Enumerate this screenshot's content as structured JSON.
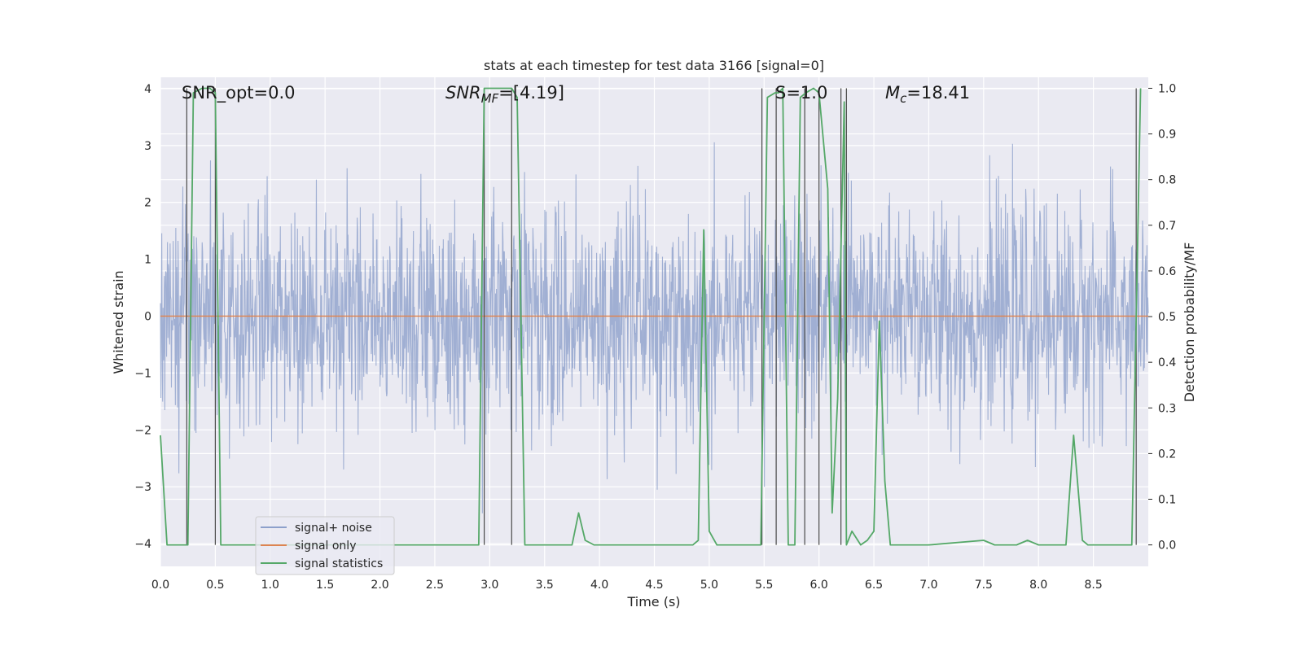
{
  "chart_data": {
    "type": "line",
    "title": "stats at each timestep for test data 3166 [signal=0]",
    "xlabel": "Time (s)",
    "ylabel": "Whitened strain",
    "y2label": "Detection probability/MF",
    "xlim": [
      0.0,
      9.0
    ],
    "ylim": [
      -4.4,
      4.2
    ],
    "y2lim": [
      -0.047,
      1.024
    ],
    "xticks": [
      0.0,
      0.5,
      1.0,
      1.5,
      2.0,
      2.5,
      3.0,
      3.5,
      4.0,
      4.5,
      5.0,
      5.5,
      6.0,
      6.5,
      7.0,
      7.5,
      8.0,
      8.5
    ],
    "xtick_labels": [
      "0.0",
      "0.5",
      "1.0",
      "1.5",
      "2.0",
      "2.5",
      "3.0",
      "3.5",
      "4.0",
      "4.5",
      "5.0",
      "5.5",
      "6.0",
      "6.5",
      "7.0",
      "7.5",
      "8.0",
      "8.5"
    ],
    "yticks": [
      -4,
      -3,
      -2,
      -1,
      0,
      1,
      2,
      3,
      4
    ],
    "ytick_labels": [
      "−4",
      "−3",
      "−2",
      "−1",
      "0",
      "1",
      "2",
      "3",
      "4"
    ],
    "y2ticks": [
      0.0,
      0.1,
      0.2,
      0.3,
      0.4,
      0.5,
      0.6,
      0.7,
      0.8,
      0.9,
      1.0
    ],
    "y2tick_labels": [
      "0.0",
      "0.1",
      "0.2",
      "0.3",
      "0.4",
      "0.5",
      "0.6",
      "0.7",
      "0.8",
      "0.9",
      "1.0"
    ],
    "annotations": [
      {
        "id": "snr-opt",
        "text": "SNR_opt=0.0",
        "x": 0.19
      },
      {
        "id": "snr-mf",
        "sub": "MF",
        "text": "=[4.19]",
        "x": 2.6
      },
      {
        "id": "s-value",
        "text": "S=1.0",
        "x": 5.6
      },
      {
        "id": "mc-value",
        "sub": "c",
        "text": "=18.41",
        "x": 6.6
      }
    ],
    "legend": {
      "placement": "lower-left",
      "entries": [
        {
          "label": "signal+ noise",
          "color": "#8da0cb"
        },
        {
          "label": "signal only",
          "color": "#dd8452"
        },
        {
          "label": "signal statistics",
          "color": "#55a868"
        }
      ]
    },
    "series": [
      {
        "name": "signal+ noise",
        "color": "#8da0cb",
        "kind": "noise",
        "t_start": 0.0,
        "t_end": 9.0,
        "n_samples": 2250,
        "std": 0.95,
        "min": -3.6,
        "max": 3.4
      },
      {
        "name": "signal only",
        "color": "#dd8452",
        "x": [
          0.0,
          9.0
        ],
        "y": [
          0.0,
          0.0
        ]
      },
      {
        "name": "signal statistics",
        "color": "#55a868",
        "x": [
          0.0,
          0.06,
          0.25,
          0.3,
          0.38,
          0.45,
          0.5,
          0.55,
          0.6,
          1.0,
          2.0,
          2.9,
          2.95,
          3.0,
          3.2,
          3.25,
          3.32,
          3.5,
          3.75,
          3.81,
          3.87,
          3.95,
          4.5,
          4.85,
          4.9,
          4.95,
          5.0,
          5.07,
          5.2,
          5.47,
          5.53,
          5.6,
          5.63,
          5.67,
          5.72,
          5.78,
          5.83,
          5.88,
          5.95,
          6.0,
          6.08,
          6.12,
          6.17,
          6.23,
          6.25,
          6.3,
          6.38,
          6.44,
          6.5,
          6.55,
          6.6,
          6.65,
          6.7,
          7.0,
          7.5,
          7.6,
          7.8,
          7.9,
          8.0,
          8.25,
          8.32,
          8.4,
          8.45,
          8.55,
          8.8,
          8.85,
          8.93
        ],
        "y": [
          0.24,
          0.0,
          0.0,
          0.99,
          1.0,
          1.0,
          0.99,
          0.0,
          0.0,
          0.0,
          0.0,
          0.0,
          1.0,
          1.0,
          1.0,
          0.98,
          0.0,
          0.0,
          0.0,
          0.07,
          0.01,
          0.0,
          0.0,
          0.0,
          0.01,
          0.69,
          0.03,
          0.0,
          0.0,
          0.0,
          0.98,
          0.99,
          0.99,
          1.0,
          0.0,
          0.0,
          0.98,
          0.99,
          1.0,
          0.99,
          0.78,
          0.07,
          0.32,
          0.97,
          0.0,
          0.03,
          0.0,
          0.01,
          0.03,
          0.49,
          0.14,
          0.0,
          0.0,
          0.0,
          0.01,
          0.0,
          0.0,
          0.01,
          0.0,
          0.0,
          0.24,
          0.01,
          0.0,
          0.0,
          0.0,
          0.0,
          1.0
        ]
      }
    ],
    "vertical_markers": [
      0.24,
      0.5,
      2.95,
      3.2,
      5.48,
      5.61,
      5.87,
      6.0,
      6.2,
      6.25,
      8.89
    ]
  }
}
